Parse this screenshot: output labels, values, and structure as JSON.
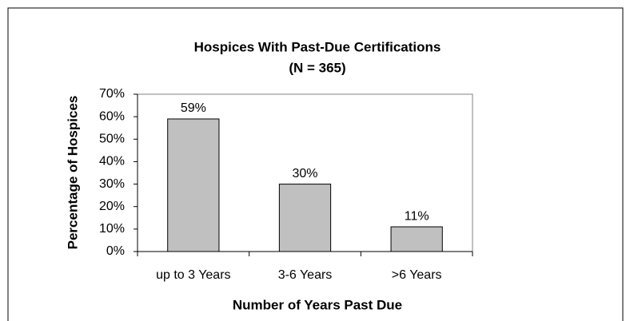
{
  "chart_data": {
    "type": "bar",
    "title": "Hospices With Past-Due Certifications",
    "subtitle": "(N = 365)",
    "x_label": "Number of Years Past Due",
    "y_label": "Percentage of Hospices",
    "categories": [
      "up to 3 Years",
      "3-6 Years",
      ">6 Years"
    ],
    "values": [
      59,
      30,
      11
    ],
    "value_labels": [
      "59%",
      "30%",
      "11%"
    ],
    "color": "#c0c0c0",
    "ylim": [
      0,
      70
    ],
    "yticks": [
      {
        "value": 0,
        "label": "0%"
      },
      {
        "value": 10,
        "label": "10%"
      },
      {
        "value": 20,
        "label": "20%"
      },
      {
        "value": 30,
        "label": "30%"
      },
      {
        "value": 40,
        "label": "40%"
      },
      {
        "value": 50,
        "label": "50%"
      },
      {
        "value": 60,
        "label": "60%"
      },
      {
        "value": 70,
        "label": "70%"
      }
    ],
    "grid": false
  }
}
